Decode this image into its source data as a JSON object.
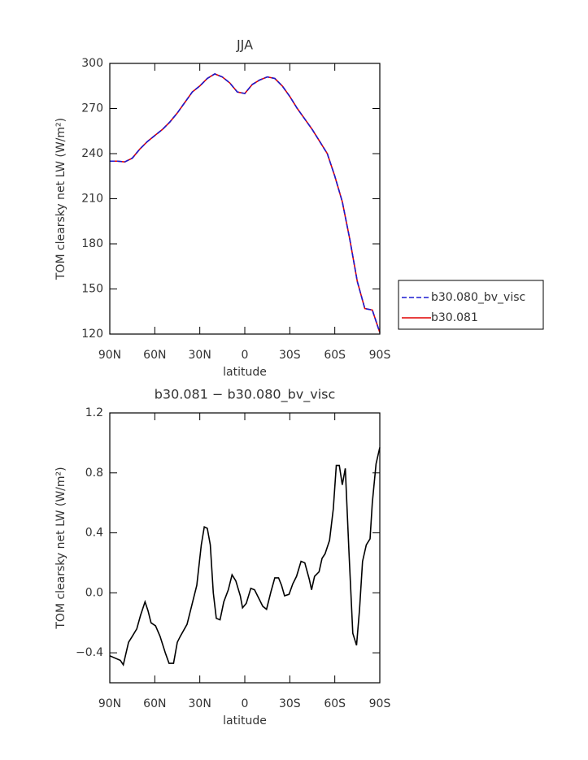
{
  "chart_data": [
    {
      "type": "line",
      "title": "JJA",
      "x_label": "latitude",
      "y_label": "TOM clearsky net LW (W/m²)",
      "x": [
        90,
        85,
        80,
        75,
        70,
        65,
        60,
        55,
        50,
        45,
        40,
        35,
        30,
        25,
        20,
        15,
        10,
        5,
        0,
        -5,
        -10,
        -15,
        -20,
        -25,
        -30,
        -35,
        -40,
        -45,
        -50,
        -55,
        -60,
        -65,
        -70,
        -75,
        -80,
        -85,
        -90
      ],
      "series": [
        {
          "name": "b30.081",
          "color": "#e00000",
          "dashed": false,
          "values": [
            235,
            235,
            234.5,
            237,
            243,
            248,
            252,
            256,
            261,
            267,
            274,
            281,
            285,
            290,
            293,
            291,
            287,
            281,
            280,
            286,
            289,
            291,
            290,
            285,
            278,
            270,
            263,
            256,
            248,
            240,
            225,
            208,
            183,
            155,
            137,
            136,
            121
          ]
        },
        {
          "name": "b30.080_bv_visc",
          "color": "#1a1ad0",
          "dashed": true,
          "values": [
            235,
            235,
            234.5,
            237,
            243,
            248,
            252,
            256,
            261,
            267,
            274,
            281,
            285,
            290,
            293,
            291,
            287,
            281,
            280,
            286,
            289,
            291,
            290,
            285,
            278,
            270,
            263,
            256,
            248,
            240,
            225,
            208,
            183,
            155,
            137,
            136,
            121
          ]
        }
      ],
      "legend": "right",
      "xlim": [
        90,
        -90
      ],
      "xticks": [
        {
          "value": 90,
          "label": "90N"
        },
        {
          "value": 60,
          "label": "60N"
        },
        {
          "value": 30,
          "label": "30N"
        },
        0,
        {
          "value": -30,
          "label": "30S"
        },
        {
          "value": -60,
          "label": "60S"
        },
        {
          "value": -90,
          "label": "90S"
        }
      ],
      "ylim": [
        120,
        300
      ],
      "yticks": [
        120,
        150,
        180,
        210,
        240,
        270,
        300
      ]
    },
    {
      "type": "line",
      "title": "b30.081 − b30.080_bv_visc",
      "x_label": "latitude",
      "y_label": "TOM clearsky net LW (W/m²)",
      "x": [
        90,
        83,
        81,
        77.5,
        75,
        72,
        69.5,
        66.5,
        64.5,
        62.5,
        59.5,
        56.5,
        53,
        50.5,
        47.5,
        45,
        43,
        38.5,
        35.5,
        32,
        29,
        27,
        25,
        23,
        21,
        19,
        16.5,
        14,
        11,
        8.5,
        6,
        3,
        1.5,
        -1,
        -4,
        -6.5,
        -9,
        -12,
        -14.5,
        -17.5,
        -20,
        -22.5,
        -24.5,
        -26.5,
        -29.5,
        -32,
        -34.5,
        -37.5,
        -40,
        -43,
        -44.5,
        -46.5,
        -49.5,
        -51.5,
        -53.5,
        -56.5,
        -59,
        -61,
        -63,
        -65,
        -67,
        -69.5,
        -72,
        -74.5,
        -76.5,
        -78.5,
        -81,
        -83.5,
        -85,
        -87.5,
        -90
      ],
      "color": "#000000",
      "values": [
        -0.42,
        -0.45,
        -0.48,
        -0.33,
        -0.29,
        -0.24,
        -0.15,
        -0.06,
        -0.12,
        -0.2,
        -0.22,
        -0.29,
        -0.4,
        -0.47,
        -0.47,
        -0.33,
        -0.29,
        -0.21,
        -0.09,
        0.05,
        0.32,
        0.44,
        0.43,
        0.32,
        0,
        -0.17,
        -0.18,
        -0.06,
        0.02,
        0.12,
        0.08,
        -0.02,
        -0.1,
        -0.07,
        0.03,
        0.02,
        -0.03,
        -0.09,
        -0.11,
        0.01,
        0.1,
        0.1,
        0.05,
        -0.02,
        -0.01,
        0.06,
        0.11,
        0.21,
        0.2,
        0.09,
        0.02,
        0.11,
        0.14,
        0.23,
        0.26,
        0.35,
        0.56,
        0.85,
        0.85,
        0.72,
        0.83,
        0.26,
        -0.27,
        -0.35,
        -0.11,
        0.21,
        0.32,
        0.36,
        0.6,
        0.86,
        0.97
      ],
      "xlim": [
        90,
        -90
      ],
      "xticks": [
        {
          "value": 90,
          "label": "90N"
        },
        {
          "value": 60,
          "label": "60N"
        },
        {
          "value": 30,
          "label": "30N"
        },
        0,
        {
          "value": -30,
          "label": "30S"
        },
        {
          "value": -60,
          "label": "60S"
        },
        {
          "value": -90,
          "label": "90S"
        }
      ],
      "ylim": [
        -0.6,
        1.2
      ],
      "yticks": [
        {
          "value": -0.4,
          "label": "−0.4"
        },
        {
          "value": 0,
          "label": "0.0"
        },
        {
          "value": 0.4,
          "label": "0.4"
        },
        {
          "value": 0.8,
          "label": "0.8"
        },
        {
          "value": 1.2,
          "label": "1.2"
        }
      ]
    }
  ]
}
